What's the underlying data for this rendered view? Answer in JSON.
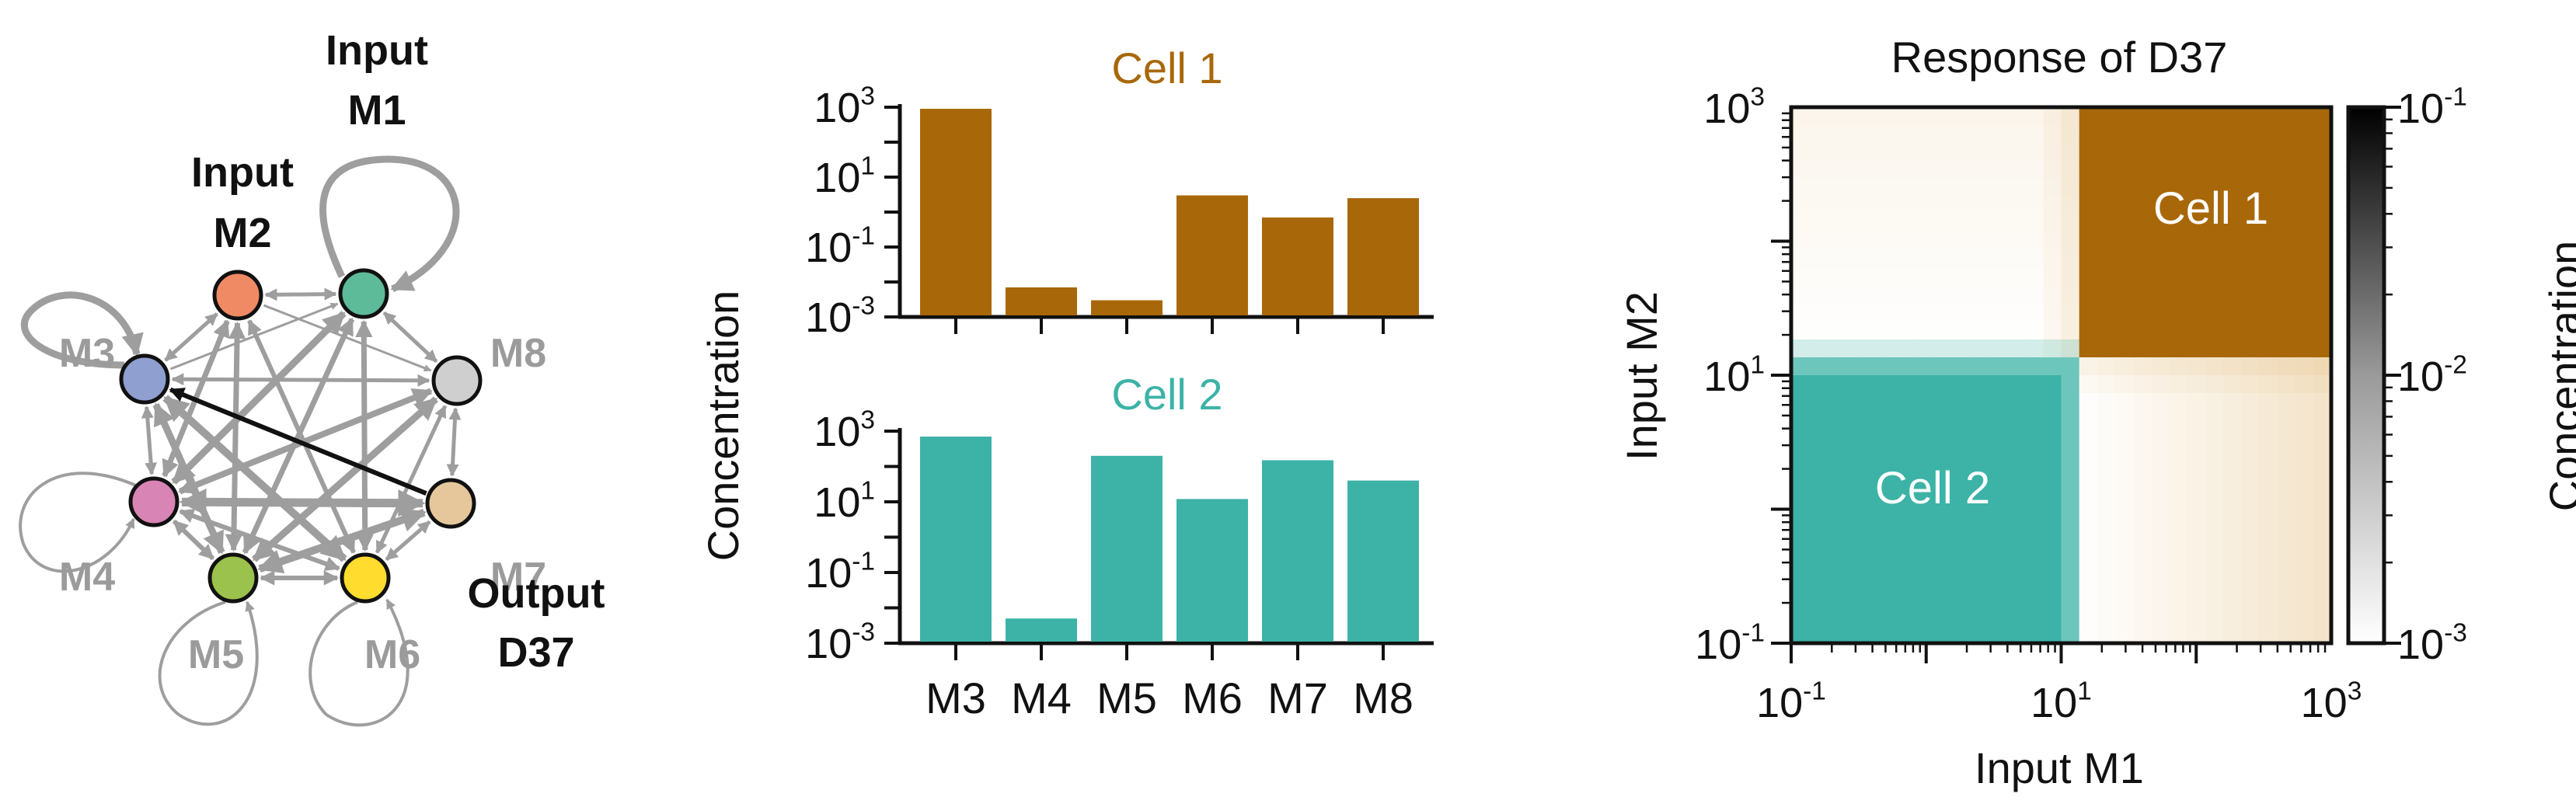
{
  "network": {
    "nodes": [
      {
        "id": "M1",
        "label": "M1",
        "caption_top": "Input",
        "color": "#5dbb99",
        "stroke": "#111111",
        "text_color": "#111111"
      },
      {
        "id": "M2",
        "label": "M2",
        "caption_top": "Input",
        "color": "#f08a64",
        "stroke": "#111111",
        "text_color": "#111111"
      },
      {
        "id": "M3",
        "label": "M3",
        "color": "#8e9fd0",
        "stroke": "#111111",
        "text_color": "#9b9b9b"
      },
      {
        "id": "M4",
        "label": "M4",
        "color": "#d884b5",
        "stroke": "#111111",
        "text_color": "#9b9b9b"
      },
      {
        "id": "M5",
        "label": "M5",
        "color": "#9ac24c",
        "stroke": "#111111",
        "text_color": "#9b9b9b"
      },
      {
        "id": "M6",
        "label": "M6",
        "color": "#ffdc2e",
        "stroke": "#111111",
        "text_color": "#9b9b9b"
      },
      {
        "id": "M7",
        "label": "M7",
        "color": "#e6c79c",
        "stroke": "#111111",
        "text_color": "#9b9b9b"
      },
      {
        "id": "M8",
        "label": "M8",
        "color": "#cfcfcf",
        "stroke": "#111111",
        "text_color": "#9b9b9b"
      }
    ],
    "output_caption": [
      "Output",
      "D37"
    ],
    "highlight_edge": [
      "M7",
      "M3"
    ],
    "edge_color": "#9e9e9e",
    "highlight_color": "#111111"
  },
  "bar_charts": {
    "ylabel": "Concentration",
    "categories": [
      "M3",
      "M4",
      "M5",
      "M6",
      "M7",
      "M8"
    ],
    "yticks": [
      "10^3",
      "10^1",
      "10^-1",
      "10^-3"
    ],
    "cell1": {
      "title": "Cell 1",
      "color": "#a8680a"
    },
    "cell2": {
      "title": "Cell 2",
      "color": "#3cb3a6"
    }
  },
  "heatmap": {
    "title": "Response of D37",
    "xlabel": "Input M1",
    "ylabel": "Input M2",
    "xticks": [
      "10^-1",
      "10^1",
      "10^3"
    ],
    "yticks": [
      "10^3",
      "10^1",
      "10^-1"
    ],
    "region_labels": {
      "cell1": "Cell 1",
      "cell2": "Cell 2"
    },
    "colorbar": {
      "label": "Concentration",
      "ticks": [
        "10^-1",
        "10^-2",
        "10^-3"
      ]
    }
  },
  "chart_data": [
    {
      "type": "bar",
      "title": "Cell 1",
      "ylabel": "Concentration",
      "yscale": "log",
      "ylim": [
        0.001,
        1000
      ],
      "categories": [
        "M3",
        "M4",
        "M5",
        "M6",
        "M7",
        "M8"
      ],
      "values": [
        900,
        0.007,
        0.003,
        3,
        0.7,
        2.5
      ]
    },
    {
      "type": "bar",
      "title": "Cell 2",
      "ylabel": "Concentration",
      "yscale": "log",
      "ylim": [
        0.001,
        1000
      ],
      "categories": [
        "M3",
        "M4",
        "M5",
        "M6",
        "M7",
        "M8"
      ],
      "values": [
        700,
        0.005,
        200,
        12,
        150,
        40
      ]
    },
    {
      "type": "heatmap",
      "title": "Response of D37",
      "xlabel": "Input M1",
      "ylabel": "Input M2",
      "xscale": "log",
      "yscale": "log",
      "xlim": [
        0.1,
        1000
      ],
      "ylim": [
        0.1,
        1000
      ],
      "regions": [
        {
          "label": "Cell 1",
          "x_range": [
            12,
            1000
          ],
          "y_range": [
            12,
            1000
          ],
          "color": "#a8680a"
        },
        {
          "label": "Cell 2",
          "x_range": [
            0.1,
            12
          ],
          "y_range": [
            0.1,
            12
          ],
          "color": "#3cb3a6"
        }
      ],
      "colorbar": {
        "label": "Concentration",
        "scale": "log",
        "range": [
          0.001,
          0.1
        ]
      }
    }
  ]
}
